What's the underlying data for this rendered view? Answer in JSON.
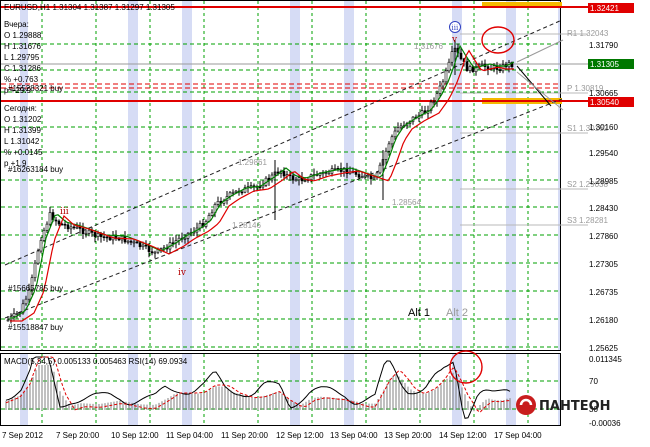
{
  "title": "EURUSD,H1  1.31304 1.31387 1.31297 1.31305",
  "info_yesterday": {
    "header": "Вчера:",
    "o": "O 1.29888",
    "h": "H 1.31676",
    "l": "L 1.29795",
    "c": "C 1.31286",
    "pct": "% +0.763",
    "p": "p +29.9"
  },
  "info_today": {
    "header": "Сегодня:",
    "o": "O 1.31202",
    "h": "H 1.31399",
    "l": "L 1.31042",
    "pct": "% +0.0145",
    "p": "p +1.9"
  },
  "order_labels": [
    "#15528321 buy",
    "#16263184 buy",
    "#15665785 buy",
    "#15518847 buy"
  ],
  "price_ticks": [
    "1.32421",
    "1.31790",
    "1.31305",
    "1.30665",
    "1.30540",
    "1.30160",
    "1.29540",
    "1.28985",
    "1.28430",
    "1.27860",
    "1.27305",
    "1.26735",
    "1.26180",
    "1.25625"
  ],
  "highlighted_prices": {
    "top_red": "1.32421",
    "current": "1.31305",
    "support_red": "1.30540"
  },
  "levels": {
    "r1": "R1 1.32043",
    "p": "P 1.30819",
    "s1": "S1 1.30162",
    "s2": "S2 1.29038",
    "s3": "S3 1.28281"
  },
  "gray_price_labels": [
    "1.31676",
    "1.29861",
    "1.28146",
    "1.28564"
  ],
  "wave_labels": {
    "iii": "iii",
    "iv": "iv",
    "v": "v",
    "circle_iii": "iii"
  },
  "alt_labels": {
    "alt1": "Alt 1",
    "alt2": "Alt 2"
  },
  "indicator_title": "MACD(5,34,5) 0.005133 0.005463  RSI(14) 69.0934",
  "indicator_ticks": [
    "0.011345",
    "70",
    "30",
    "-0.00036"
  ],
  "time_ticks": [
    "7 Sep 2012",
    "7 Sep 20:00",
    "10 Sep 12:00",
    "11 Sep 04:00",
    "11 Sep 20:00",
    "12 Sep 12:00",
    "13 Sep 04:00",
    "13 Sep 20:00",
    "14 Sep 12:00",
    "17 Sep 04:00"
  ],
  "logo_text": "ПАНТЕОН",
  "colors": {
    "up_ma": "#008000",
    "down_ma": "#e00000",
    "red_level": "#e00000",
    "orange_band": "#f5b800",
    "grid_green": "#00a000",
    "session_band": "#d6dcf5",
    "logo_red": "#c81e1e"
  }
}
